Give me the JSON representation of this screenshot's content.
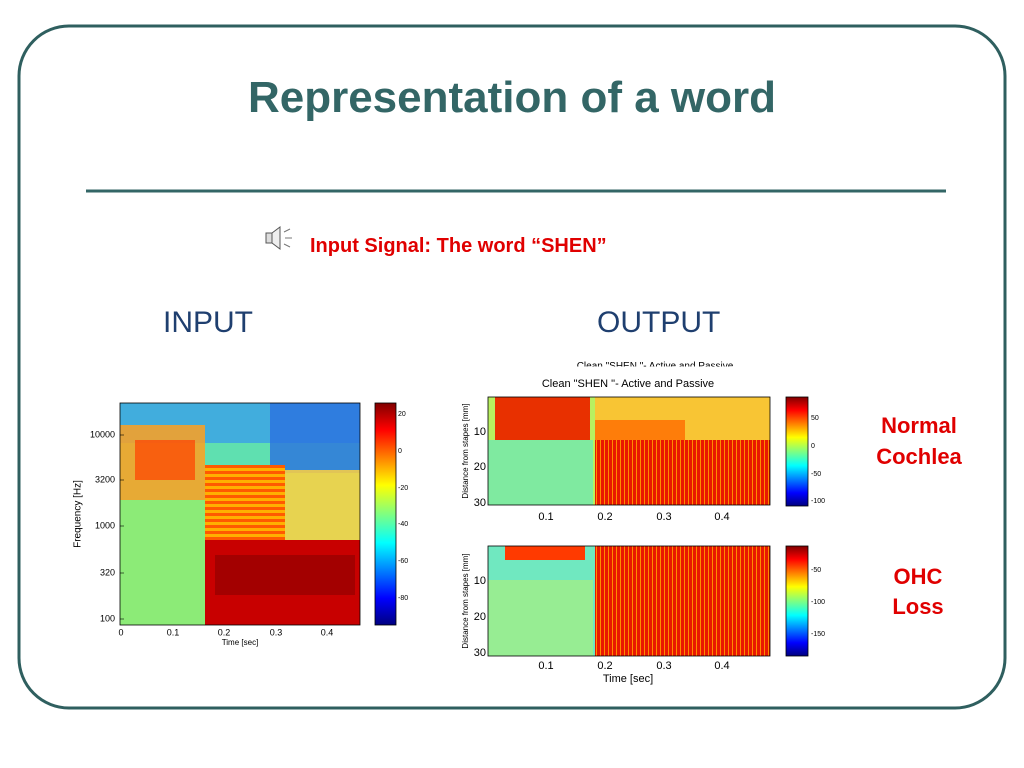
{
  "title": "Representation of a word",
  "audio_caption": "Input Signal: The word “SHEN”",
  "input_label": "INPUT",
  "output_label": "OUTPUT",
  "input_plot": {
    "ylabel": "Frequency [Hz]",
    "xlabel": "Time [sec]",
    "yticks": [
      "10000",
      "3200",
      "1000",
      "320",
      "100"
    ],
    "xticks": [
      "0",
      "0.1",
      "0.2",
      "0.3",
      "0.4"
    ],
    "colorbar_ticks": [
      "20",
      "0",
      "-20",
      "-40",
      "-60",
      "-80"
    ]
  },
  "output_plot_top": {
    "clipped_title": "Clean  \"SHEN \"- Active and Passive",
    "title": "Clean  \"SHEN \"- Active and Passive",
    "ylabel": "Distance from stapes [mm]",
    "yticks": [
      "10",
      "20",
      "30"
    ],
    "xticks": [
      "0.1",
      "0.2",
      "0.3",
      "0.4"
    ],
    "colorbar_ticks": [
      "50",
      "0",
      "-50",
      "-100"
    ],
    "side_label": [
      "Normal",
      "Cochlea"
    ]
  },
  "output_plot_bottom": {
    "ylabel": "Distance from stapes [mm]",
    "xlabel": "Time [sec]",
    "yticks": [
      "10",
      "20",
      "30"
    ],
    "xticks": [
      "0.1",
      "0.2",
      "0.3",
      "0.4"
    ],
    "colorbar_ticks": [
      "-50",
      "-100",
      "-150"
    ],
    "side_label": [
      "OHC",
      "Loss"
    ]
  }
}
